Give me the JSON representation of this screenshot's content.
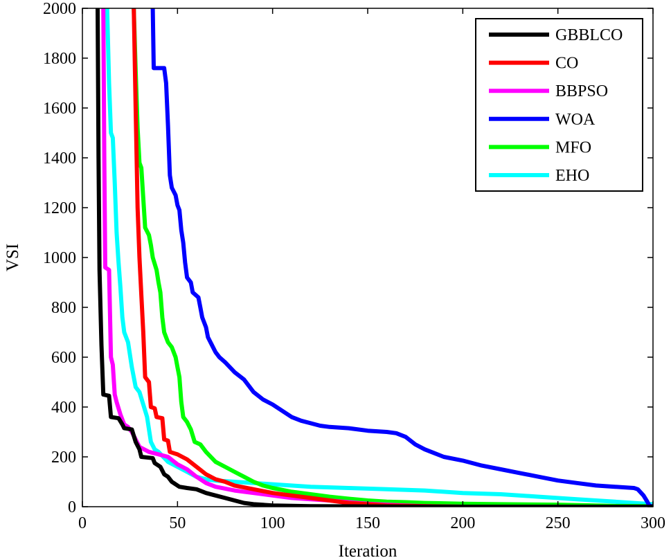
{
  "chart_data": {
    "type": "line",
    "title": "",
    "xlabel": "Iteration",
    "ylabel": "VSI",
    "xlim": [
      0,
      300
    ],
    "ylim": [
      0,
      2000
    ],
    "xticks": [
      "0",
      "50",
      "100",
      "150",
      "200",
      "250",
      "300"
    ],
    "yticks": [
      "0",
      "200",
      "400",
      "600",
      "800",
      "1000",
      "1200",
      "1400",
      "1600",
      "1800",
      "2000"
    ],
    "grid": false,
    "legend_position": "top-right",
    "series": [
      {
        "name": "GBBLCO",
        "color": "#000000",
        "points": [
          [
            8,
            2000
          ],
          [
            8.5,
            1400
          ],
          [
            9,
            950
          ],
          [
            10,
            650
          ],
          [
            11,
            450
          ],
          [
            14,
            445
          ],
          [
            15,
            360
          ],
          [
            19,
            355
          ],
          [
            21,
            330
          ],
          [
            22,
            315
          ],
          [
            26,
            310
          ],
          [
            28,
            260
          ],
          [
            30,
            230
          ],
          [
            31,
            200
          ],
          [
            37,
            195
          ],
          [
            38,
            175
          ],
          [
            41,
            160
          ],
          [
            43,
            130
          ],
          [
            45,
            120
          ],
          [
            47,
            100
          ],
          [
            49,
            90
          ],
          [
            51,
            80
          ],
          [
            55,
            75
          ],
          [
            60,
            70
          ],
          [
            65,
            55
          ],
          [
            70,
            45
          ],
          [
            75,
            35
          ],
          [
            80,
            25
          ],
          [
            85,
            15
          ],
          [
            90,
            10
          ],
          [
            100,
            5
          ],
          [
            120,
            2
          ],
          [
            150,
            1
          ],
          [
            200,
            0
          ],
          [
            300,
            0
          ]
        ]
      },
      {
        "name": "CO",
        "color": "#ff0000",
        "points": [
          [
            27,
            2000
          ],
          [
            28,
            1600
          ],
          [
            29,
            1200
          ],
          [
            30,
            1000
          ],
          [
            31,
            850
          ],
          [
            32,
            700
          ],
          [
            33,
            520
          ],
          [
            35,
            500
          ],
          [
            36,
            400
          ],
          [
            38,
            395
          ],
          [
            39,
            360
          ],
          [
            42,
            355
          ],
          [
            43,
            270
          ],
          [
            45,
            265
          ],
          [
            46,
            220
          ],
          [
            50,
            210
          ],
          [
            55,
            190
          ],
          [
            60,
            160
          ],
          [
            65,
            130
          ],
          [
            70,
            110
          ],
          [
            75,
            100
          ],
          [
            80,
            85
          ],
          [
            90,
            70
          ],
          [
            100,
            55
          ],
          [
            110,
            45
          ],
          [
            120,
            35
          ],
          [
            130,
            25
          ],
          [
            140,
            15
          ],
          [
            150,
            10
          ],
          [
            160,
            5
          ],
          [
            180,
            2
          ],
          [
            200,
            0
          ],
          [
            300,
            0
          ]
        ]
      },
      {
        "name": "BBPSO",
        "color": "#ff00ff",
        "points": [
          [
            11,
            2000
          ],
          [
            11.5,
            1400
          ],
          [
            12,
            960
          ],
          [
            14,
            950
          ],
          [
            15,
            600
          ],
          [
            16,
            570
          ],
          [
            17,
            450
          ],
          [
            18,
            420
          ],
          [
            20,
            370
          ],
          [
            22,
            330
          ],
          [
            24,
            320
          ],
          [
            26,
            300
          ],
          [
            28,
            270
          ],
          [
            30,
            240
          ],
          [
            35,
            220
          ],
          [
            40,
            210
          ],
          [
            45,
            200
          ],
          [
            50,
            170
          ],
          [
            55,
            150
          ],
          [
            60,
            120
          ],
          [
            65,
            95
          ],
          [
            70,
            80
          ],
          [
            80,
            65
          ],
          [
            90,
            55
          ],
          [
            100,
            45
          ],
          [
            110,
            35
          ],
          [
            120,
            30
          ],
          [
            130,
            25
          ],
          [
            140,
            18
          ],
          [
            150,
            12
          ],
          [
            160,
            8
          ],
          [
            170,
            5
          ],
          [
            180,
            2
          ],
          [
            200,
            0
          ],
          [
            300,
            0
          ]
        ]
      },
      {
        "name": "WOA",
        "color": "#0000ff",
        "points": [
          [
            37,
            2000
          ],
          [
            37.5,
            1760
          ],
          [
            43,
            1760
          ],
          [
            44,
            1700
          ],
          [
            45,
            1530
          ],
          [
            46,
            1330
          ],
          [
            47,
            1280
          ],
          [
            49,
            1250
          ],
          [
            50,
            1210
          ],
          [
            51,
            1190
          ],
          [
            52,
            1110
          ],
          [
            53,
            1060
          ],
          [
            54,
            980
          ],
          [
            55,
            920
          ],
          [
            57,
            900
          ],
          [
            58,
            860
          ],
          [
            61,
            840
          ],
          [
            62,
            800
          ],
          [
            63,
            760
          ],
          [
            65,
            720
          ],
          [
            66,
            680
          ],
          [
            68,
            650
          ],
          [
            70,
            620
          ],
          [
            72,
            600
          ],
          [
            75,
            580
          ],
          [
            80,
            540
          ],
          [
            85,
            510
          ],
          [
            88,
            480
          ],
          [
            90,
            460
          ],
          [
            95,
            430
          ],
          [
            100,
            410
          ],
          [
            105,
            385
          ],
          [
            110,
            360
          ],
          [
            115,
            345
          ],
          [
            120,
            335
          ],
          [
            125,
            325
          ],
          [
            130,
            320
          ],
          [
            140,
            315
          ],
          [
            150,
            305
          ],
          [
            160,
            300
          ],
          [
            165,
            295
          ],
          [
            170,
            280
          ],
          [
            175,
            250
          ],
          [
            180,
            230
          ],
          [
            185,
            215
          ],
          [
            190,
            200
          ],
          [
            200,
            185
          ],
          [
            210,
            165
          ],
          [
            220,
            150
          ],
          [
            230,
            135
          ],
          [
            240,
            120
          ],
          [
            250,
            105
          ],
          [
            260,
            95
          ],
          [
            270,
            85
          ],
          [
            280,
            80
          ],
          [
            290,
            75
          ],
          [
            292,
            70
          ],
          [
            295,
            45
          ],
          [
            297,
            20
          ],
          [
            298,
            5
          ],
          [
            300,
            0
          ]
        ]
      },
      {
        "name": "MFO",
        "color": "#00ff00",
        "points": [
          [
            27,
            2000
          ],
          [
            28,
            1750
          ],
          [
            29,
            1520
          ],
          [
            30,
            1380
          ],
          [
            31,
            1360
          ],
          [
            33,
            1120
          ],
          [
            35,
            1090
          ],
          [
            36,
            1050
          ],
          [
            37,
            1000
          ],
          [
            39,
            950
          ],
          [
            40,
            900
          ],
          [
            41,
            860
          ],
          [
            42,
            760
          ],
          [
            43,
            700
          ],
          [
            45,
            660
          ],
          [
            47,
            640
          ],
          [
            49,
            600
          ],
          [
            50,
            560
          ],
          [
            51,
            520
          ],
          [
            52,
            420
          ],
          [
            53,
            360
          ],
          [
            55,
            340
          ],
          [
            57,
            310
          ],
          [
            59,
            260
          ],
          [
            62,
            250
          ],
          [
            65,
            220
          ],
          [
            70,
            180
          ],
          [
            75,
            160
          ],
          [
            80,
            140
          ],
          [
            85,
            120
          ],
          [
            90,
            100
          ],
          [
            95,
            85
          ],
          [
            100,
            75
          ],
          [
            110,
            60
          ],
          [
            120,
            50
          ],
          [
            130,
            40
          ],
          [
            140,
            32
          ],
          [
            150,
            25
          ],
          [
            160,
            20
          ],
          [
            170,
            18
          ],
          [
            180,
            15
          ],
          [
            200,
            12
          ],
          [
            220,
            10
          ],
          [
            250,
            8
          ],
          [
            270,
            5
          ],
          [
            280,
            3
          ],
          [
            300,
            2
          ]
        ]
      },
      {
        "name": "EHO",
        "color": "#00ffff",
        "points": [
          [
            13,
            2000
          ],
          [
            14,
            1700
          ],
          [
            15,
            1500
          ],
          [
            16,
            1480
          ],
          [
            17,
            1300
          ],
          [
            18,
            1100
          ],
          [
            19,
            980
          ],
          [
            20,
            880
          ],
          [
            21,
            760
          ],
          [
            22,
            700
          ],
          [
            24,
            660
          ],
          [
            26,
            560
          ],
          [
            28,
            480
          ],
          [
            30,
            460
          ],
          [
            32,
            410
          ],
          [
            34,
            360
          ],
          [
            36,
            260
          ],
          [
            38,
            230
          ],
          [
            40,
            220
          ],
          [
            45,
            180
          ],
          [
            50,
            160
          ],
          [
            55,
            140
          ],
          [
            60,
            120
          ],
          [
            65,
            110
          ],
          [
            70,
            105
          ],
          [
            80,
            100
          ],
          [
            90,
            95
          ],
          [
            100,
            90
          ],
          [
            120,
            80
          ],
          [
            140,
            75
          ],
          [
            160,
            70
          ],
          [
            180,
            65
          ],
          [
            200,
            55
          ],
          [
            220,
            50
          ],
          [
            240,
            40
          ],
          [
            260,
            30
          ],
          [
            270,
            25
          ],
          [
            280,
            20
          ],
          [
            290,
            15
          ],
          [
            300,
            10
          ]
        ]
      }
    ]
  }
}
